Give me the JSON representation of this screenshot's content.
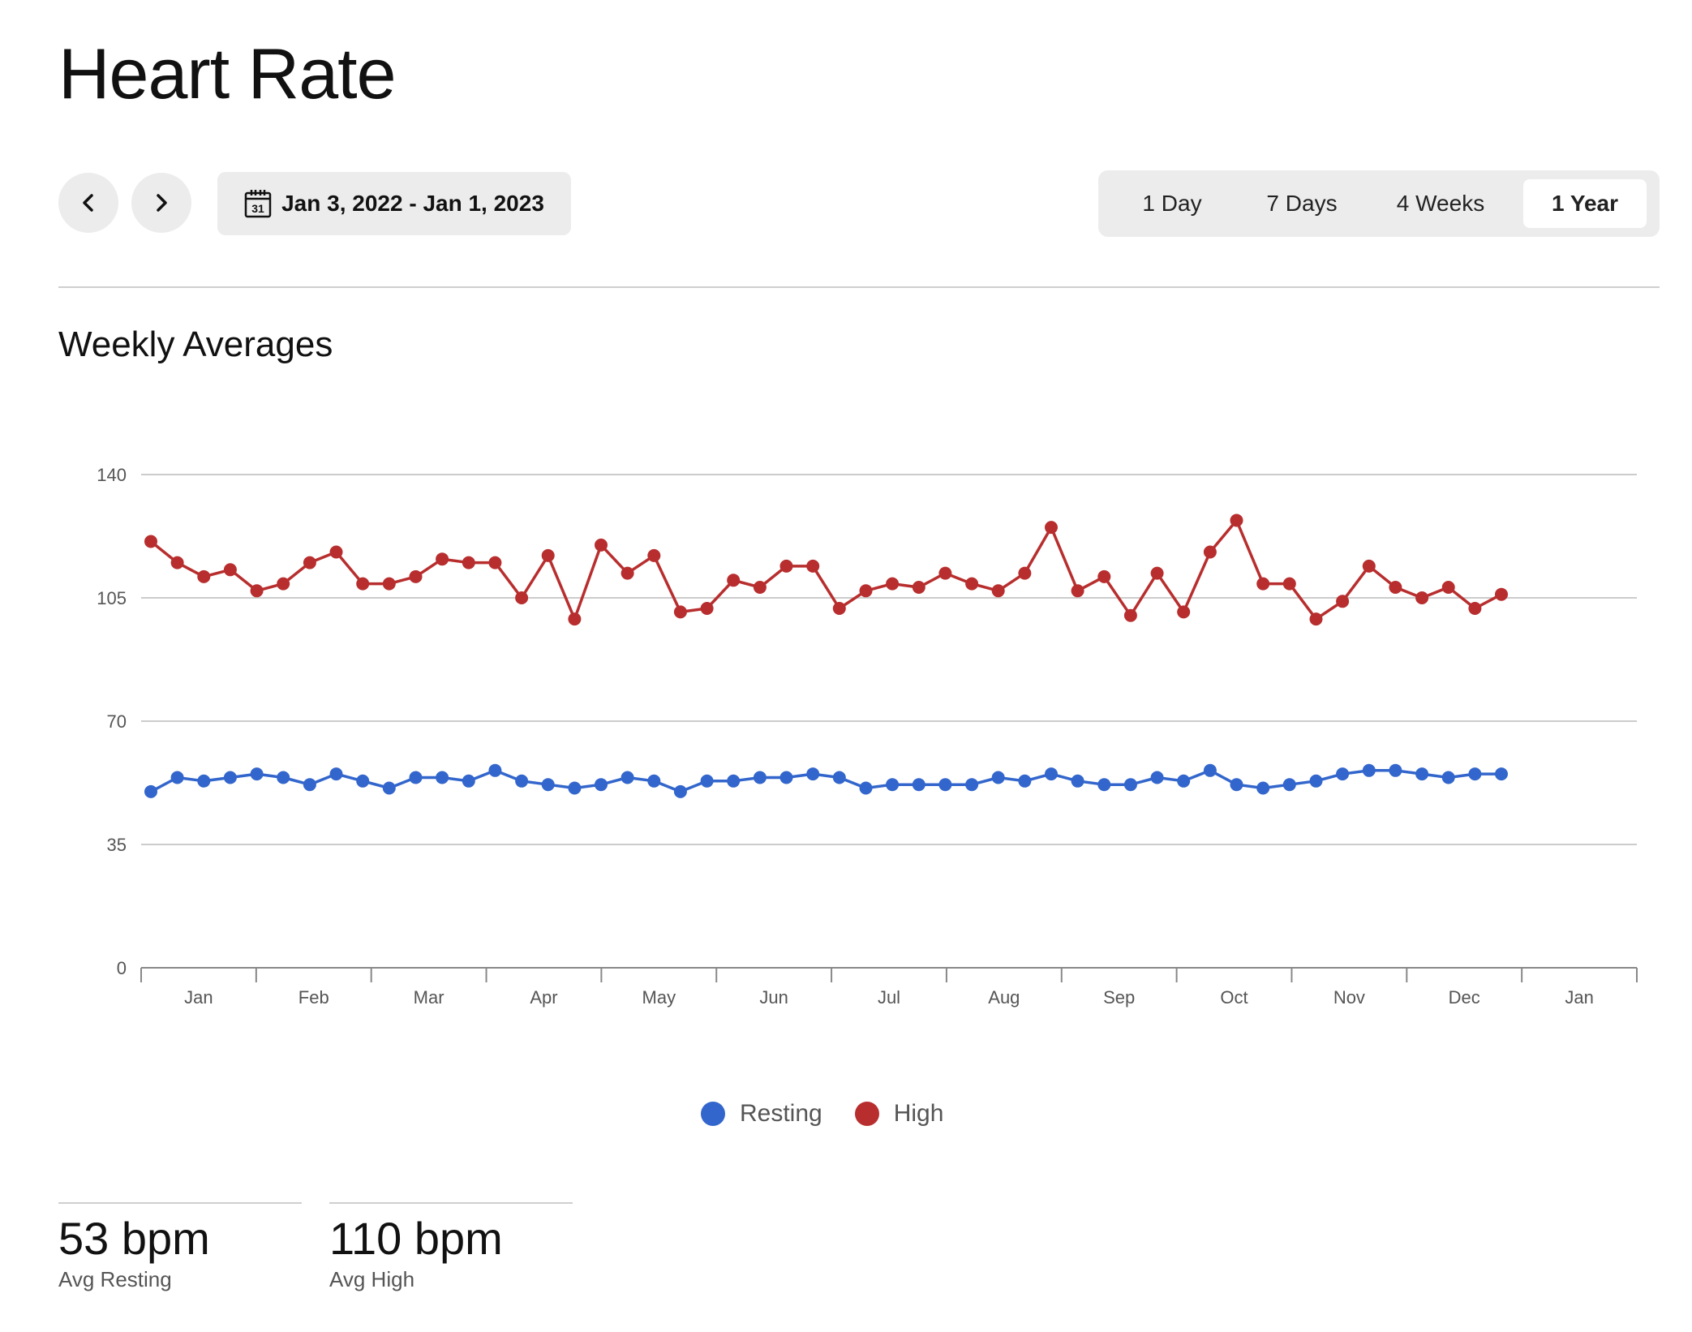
{
  "page": {
    "title": "Heart Rate"
  },
  "controls": {
    "prev_icon": "chevron-left-icon",
    "next_icon": "chevron-right-icon",
    "calendar_icon": "calendar-icon",
    "calendar_day": "31",
    "date_range": "Jan 3, 2022 - Jan 1, 2023",
    "tabs": [
      {
        "label": "1 Day",
        "active": false
      },
      {
        "label": "7 Days",
        "active": false
      },
      {
        "label": "4 Weeks",
        "active": false
      },
      {
        "label": "1 Year",
        "active": true
      }
    ]
  },
  "section": {
    "title": "Weekly Averages"
  },
  "chart_data": {
    "type": "line",
    "title": "",
    "xlabel": "",
    "ylabel": "",
    "ylim": [
      0,
      140
    ],
    "yticks": [
      0,
      35,
      70,
      105,
      140
    ],
    "xticks": [
      "Jan",
      "Feb",
      "Mar",
      "Apr",
      "May",
      "Jun",
      "Jul",
      "Aug",
      "Sep",
      "Oct",
      "Nov",
      "Dec",
      "Jan"
    ],
    "grid": true,
    "legend_position": "bottom",
    "series": [
      {
        "name": "Resting",
        "color": "#3366cc",
        "values": [
          50,
          54,
          53,
          54,
          55,
          54,
          52,
          55,
          53,
          51,
          54,
          54,
          53,
          56,
          53,
          52,
          51,
          52,
          54,
          53,
          50,
          53,
          53,
          54,
          54,
          55,
          54,
          51,
          52,
          52,
          52,
          52,
          54,
          53,
          55,
          53,
          52,
          52,
          54,
          53,
          56,
          52,
          51,
          52,
          53,
          55,
          56,
          56,
          55,
          54,
          55,
          55
        ]
      },
      {
        "name": "High",
        "color": "#b82e2e",
        "values": [
          121,
          115,
          111,
          113,
          107,
          109,
          115,
          118,
          109,
          109,
          111,
          116,
          115,
          115,
          105,
          117,
          99,
          120,
          112,
          117,
          101,
          102,
          110,
          108,
          114,
          114,
          102,
          107,
          109,
          108,
          112,
          109,
          107,
          112,
          125,
          107,
          111,
          100,
          112,
          101,
          118,
          127,
          109,
          109,
          99,
          104,
          114,
          108,
          105,
          108,
          102,
          106
        ]
      }
    ]
  },
  "legend": {
    "items": [
      {
        "label": "Resting",
        "color": "#3366cc"
      },
      {
        "label": "High",
        "color": "#b82e2e"
      }
    ]
  },
  "stats": [
    {
      "value": "53 bpm",
      "label": "Avg Resting"
    },
    {
      "value": "110 bpm",
      "label": "Avg High"
    }
  ]
}
